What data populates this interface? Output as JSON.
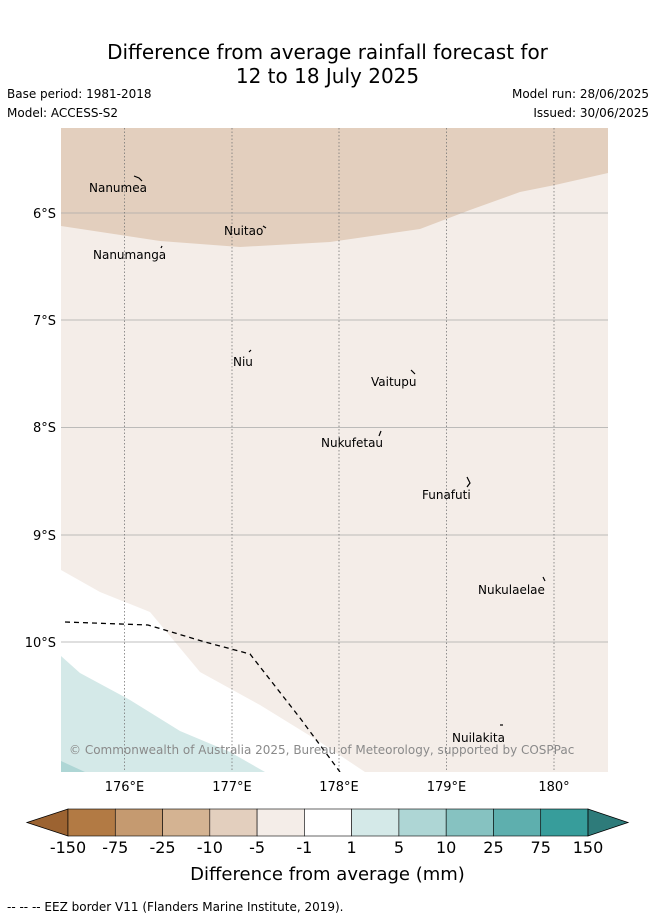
{
  "header": {
    "title_line1": "Difference from average rainfall forecast for",
    "title_line2": "12 to 18 July 2025",
    "base_period": "Base period: 1981-2018",
    "model": "Model: ACCESS-S2",
    "model_run": "Model run: 28/06/2025",
    "issued": "Issued: 30/06/2025"
  },
  "map": {
    "credit": "© Commonwealth of Australia 2025, Bureau of Meteorology, supported by COSPPac",
    "lat_labels": [
      "6°S",
      "7°S",
      "8°S",
      "9°S",
      "10°S"
    ],
    "lon_labels": [
      "176°E",
      "177°E",
      "178°E",
      "179°E",
      "180°"
    ],
    "places": [
      "Nanumea",
      "Nuitao",
      "Nanumanga",
      "Niu",
      "Vaitupu",
      "Nukufetau",
      "Funafuti",
      "Nukulaelae",
      "Nuilakita"
    ],
    "colors": {
      "band_m10_m5": "#e3cfbe",
      "band_m5_m1": "#f4ede8",
      "band_m1_1": "#ffffff",
      "band_1_5": "#d4e9e8"
    }
  },
  "colorbar": {
    "ticks": [
      "-150",
      "-75",
      "-25",
      "-10",
      "-5",
      "-1",
      "1",
      "5",
      "10",
      "25",
      "75",
      "150"
    ],
    "colors": [
      "#9c6331",
      "#b27a44",
      "#c59a70",
      "#d4b392",
      "#e3cfbe",
      "#f4ede8",
      "#ffffff",
      "#d4e9e8",
      "#aed6d5",
      "#86c2c1",
      "#5eafae",
      "#379d9b",
      "#2e7b7a"
    ],
    "title": "Difference from average (mm)"
  },
  "footnote": "--  --  -- EEZ border V11 (Flanders Marine Institute, 2019)."
}
